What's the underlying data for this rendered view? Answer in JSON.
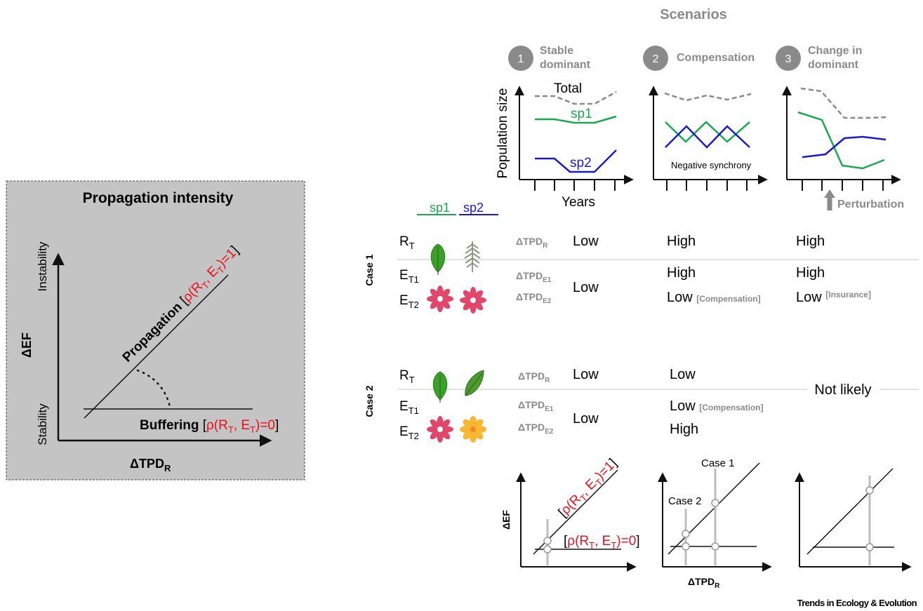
{
  "left_panel": {
    "title": "Propagation intensity",
    "y_axis_label": "ΔEF",
    "y_top": "Instability",
    "y_bottom": "Stability",
    "x_axis_label_main": "ΔTPD",
    "x_axis_label_sub": "R",
    "propagation_label": "Propagation",
    "buffering_label": "Buffering",
    "rho_open": "[",
    "rho_close": "]",
    "rho_prefix": "ρ(R",
    "rho_sub_r": "T",
    "rho_mid": ", E",
    "rho_sub_e": "T",
    "rho_eq1": ")=1",
    "rho_eq0": ")=0"
  },
  "scenarios": {
    "header": "Scenarios",
    "items": [
      {
        "number": "1",
        "line1": "Stable",
        "line2": "dominant"
      },
      {
        "number": "2",
        "line1": "Compensation",
        "line2": ""
      },
      {
        "number": "3",
        "line1": "Change in",
        "line2": "dominant"
      }
    ],
    "y_axis_label": "Population size",
    "x_axis_label": "Years",
    "total_label": "Total",
    "sp1_label": "sp1",
    "sp2_label": "sp2",
    "negative_synchrony": "Negative synchrony",
    "perturbation": "Perturbation",
    "colors": {
      "sp1": "#1aa84f",
      "sp2": "#1a1acc",
      "total": "#8a8a8a",
      "circle": "#8a8a8a"
    }
  },
  "legend": {
    "sp1": "sp1",
    "sp2": "sp2"
  },
  "table": {
    "case1": {
      "label": "Case 1",
      "rt": "R",
      "rt_sub": "T",
      "et1": "E",
      "et1_sub": "T1",
      "et2": "E",
      "et2_sub": "T2",
      "tpd_r": "ΔTPD",
      "tpd_r_sub": "R",
      "tpd_e1": "ΔTPD",
      "tpd_e1_sub": "E1",
      "tpd_e2": "ΔTPD",
      "tpd_e2_sub": "E2",
      "s1_r": "Low",
      "s1_e": "Low",
      "s2_r": "High",
      "s2_e1": "High",
      "s2_e2": "Low",
      "s2_e2_note": "[Compensation]",
      "s3_r": "High",
      "s3_e1": "High",
      "s3_e2": "Low",
      "s3_e2_note": "[Insurance]"
    },
    "case2": {
      "label": "Case 2",
      "rt": "R",
      "rt_sub": "T",
      "et1": "E",
      "et1_sub": "T1",
      "et2": "E",
      "et2_sub": "T2",
      "tpd_r": "ΔTPD",
      "tpd_r_sub": "R",
      "tpd_e1": "ΔTPD",
      "tpd_e1_sub": "E1",
      "tpd_e2": "ΔTPD",
      "tpd_e2_sub": "E2",
      "s1_r": "Low",
      "s1_e": "Low",
      "s2_r": "Low",
      "s2_e1": "Low",
      "s2_e1_note": "[Compensation]",
      "s2_e2": "High",
      "s3": "Not likely"
    }
  },
  "bottom": {
    "y_axis_label": "ΔEF",
    "x_axis_label_main": "ΔTPD",
    "x_axis_label_sub": "R",
    "case1_label": "Case 1",
    "case2_label": "Case 2"
  },
  "credit": "Trends in Ecology & Evolution"
}
